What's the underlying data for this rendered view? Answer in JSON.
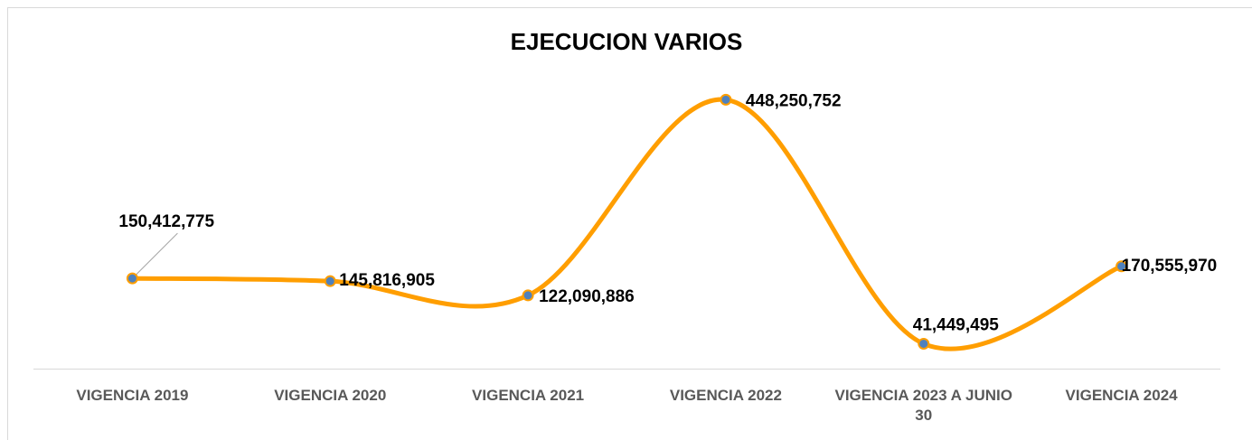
{
  "chart_data": {
    "type": "line",
    "title": "EJECUCION VARIOS",
    "categories": [
      "VIGENCIA 2019",
      "VIGENCIA 2020",
      "VIGENCIA 2021",
      "VIGENCIA 2022",
      "VIGENCIA 2023 A JUNIO 30",
      "VIGENCIA 2024"
    ],
    "values": [
      150412775,
      145816905,
      122090886,
      448250752,
      41449495,
      170555970
    ],
    "value_labels": [
      "150,412,775",
      "145,816,905",
      "122,090,886",
      "448,250,752",
      "41,449,495",
      "170,555,970"
    ],
    "color": "#ff9e00",
    "marker_color": "#4f81bd",
    "ylim": [
      0,
      500000000
    ],
    "smooth": true
  }
}
